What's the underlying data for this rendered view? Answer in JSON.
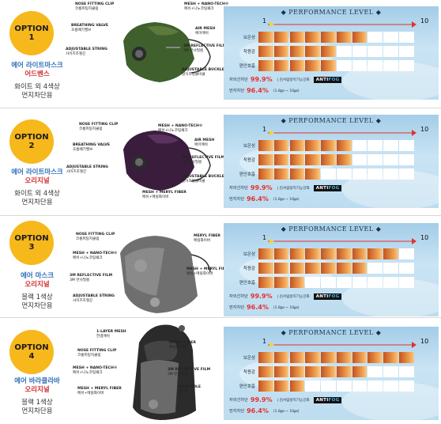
{
  "colors": {
    "badge": "#f7b81c",
    "name_blue": "#2e6fb8",
    "name_red": "#d12f2f",
    "value_red": "#e53030",
    "bar_fill": "#e0803a"
  },
  "panel_common": {
    "title": "◆ PERFORMANCE LEVEL ◆",
    "scale_min": "1",
    "scale_max": "10",
    "row_labels": [
      "보온성",
      "착용감",
      "편안호흡"
    ],
    "stat1_label": "자외선차단",
    "stat1_value": "99.9%",
    "stat1_note": "김서림방지기능강화",
    "antifog_a": "ANTI",
    "antifog_b": "FOG",
    "stat2_label": "먼지차단",
    "stat2_value": "96.4%",
    "stat2_note": "(1.8㎛ ~ 10㎛)"
  },
  "options": [
    {
      "badge_title": "OPTION",
      "badge_num": "1",
      "name1": "에어 라이트마스크",
      "name2": "어드벤스",
      "desc1": "화이트 외 4색상",
      "desc2": "먼지차단용",
      "levels": [
        7,
        5,
        5
      ],
      "callouts": [
        {
          "en": "NOSE FITTING CLIP",
          "ko": "코롬피팅지클립"
        },
        {
          "en": "BREATHING VALVE",
          "ko": "호흡배기밸브"
        },
        {
          "en": "ADJUSTABLE STRING",
          "ko": "사이즈조절끈"
        },
        {
          "en": "MESH + NANO-TECH®",
          "ko": "메쉬+나노코팅패크"
        },
        {
          "en": "AIR MESH",
          "ko": "에어메쉬"
        },
        {
          "en": "3M REFLECTIVE FILM",
          "ko": "3M 반사필름"
        },
        {
          "en": "ADJUSTABLE BUCKLE",
          "ko": "길이조정클비클"
        }
      ]
    },
    {
      "badge_title": "OPTION",
      "badge_num": "2",
      "name1": "에어 라이트마스크",
      "name2": "오리지널",
      "desc1": "화이트 외 4색상",
      "desc2": "먼지차단용",
      "levels": [
        6,
        6,
        4
      ],
      "callouts": [
        {
          "en": "NOSE FITTING CLIP",
          "ko": "코롬피팅지클립"
        },
        {
          "en": "BREATHING VALVE",
          "ko": "호흡배기밸브"
        },
        {
          "en": "ADJUSTABLE STRING",
          "ko": "사이즈조절끈"
        },
        {
          "en": "MESH + NANO-TECH®",
          "ko": "메쉬+나노코팅패크"
        },
        {
          "en": "AIR MESH",
          "ko": "에어메쉬"
        },
        {
          "en": "3M REFLECTIVE FILM",
          "ko": "3M 반사필름"
        },
        {
          "en": "ADJUSTABLE BUCKLE",
          "ko": "길이조정클비클"
        },
        {
          "en": "MESH + MERYL FIBER",
          "ko": "메쉬+메릴화이버"
        }
      ]
    },
    {
      "badge_title": "OPTION",
      "badge_num": "3",
      "name1": "에어 마스크",
      "name2": "오리지널",
      "desc1": "블랙 1색상",
      "desc2": "먼지차단용",
      "levels": [
        9,
        7,
        3
      ],
      "callouts": [
        {
          "en": "NOSE FITTING CLIP",
          "ko": "코롬피팅지클립"
        },
        {
          "en": "MESH + NANO-TECH®",
          "ko": "메쉬+나노코팅패크"
        },
        {
          "en": "3M REFLECTIVE FILM",
          "ko": "3M 반사필름"
        },
        {
          "en": "ADJUSTABLE STRING",
          "ko": "사이즈조절끈"
        },
        {
          "en": "MERYL FIBER",
          "ko": "메릴화이버"
        },
        {
          "en": "MESH + MERYL FIBER",
          "ko": "메쉬+메릴화이버"
        }
      ]
    },
    {
      "badge_title": "OPTION",
      "badge_num": "4",
      "name1": "에어 바라클라바",
      "name2": "오리지널",
      "desc1": "블랙 1색상",
      "desc2": "먼지차단용",
      "levels": [
        10,
        7,
        3
      ],
      "callouts": [
        {
          "en": "1-LAYER MESH",
          "ko": "한겹메쉬"
        },
        {
          "en": "NOSE FITTING CLIP",
          "ko": "코롬피팅지클립"
        },
        {
          "en": "MESH + NANO-TECH®",
          "ko": "메쉬+나노코팅패크"
        },
        {
          "en": "MESH + MERYL FIBER",
          "ko": "메쉬+메릴화이버"
        },
        {
          "en": "MERYL FIBER",
          "ko": "메릴화이버"
        },
        {
          "en": "3M REFLECTIVE FILM",
          "ko": "3M 반사필름"
        },
        {
          "en": "HAIR HOLE",
          "ko": "헤어홀"
        }
      ]
    }
  ]
}
